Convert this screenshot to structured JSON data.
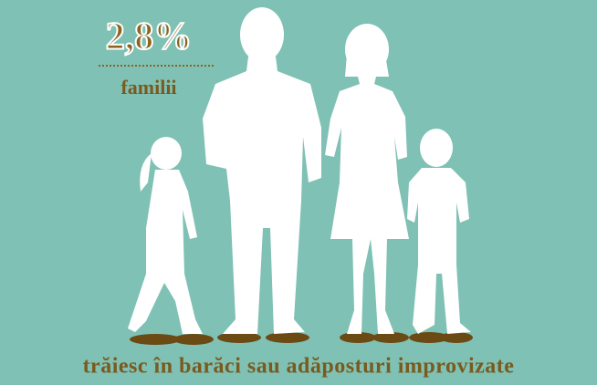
{
  "stat": {
    "value": "2,8%",
    "label": "familii"
  },
  "caption": "trăiesc în barăci sau adăposturi improvizate"
}
